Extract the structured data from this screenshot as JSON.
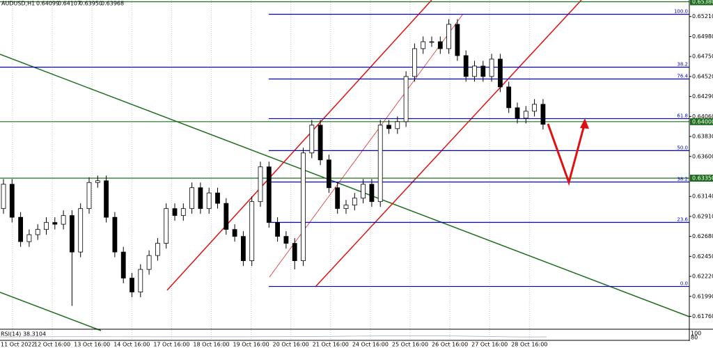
{
  "chart_data": {
    "type": "candlestick",
    "symbol": "AUDUSD,H1",
    "quote": [
      "0.64099",
      "0.64107",
      "0.63950",
      "0.63968"
    ],
    "ylim": [
      0.6162,
      0.654
    ],
    "yticks": [
      {
        "value": 0.6521,
        "label": "0.65210"
      },
      {
        "value": 0.6498,
        "label": "0.64980"
      },
      {
        "value": 0.6475,
        "label": "0.64750"
      },
      {
        "value": 0.6452,
        "label": "0.64520"
      },
      {
        "value": 0.6429,
        "label": "0.64290"
      },
      {
        "value": 0.6406,
        "label": "0.64060"
      },
      {
        "value": 0.6383,
        "label": "0.63830"
      },
      {
        "value": 0.636,
        "label": "0.63600"
      },
      {
        "value": 0.6314,
        "label": "0.63140"
      },
      {
        "value": 0.6291,
        "label": "0.62910"
      },
      {
        "value": 0.6268,
        "label": "0.62680"
      },
      {
        "value": 0.6245,
        "label": "0.62450"
      },
      {
        "value": 0.6222,
        "label": "0.62220"
      },
      {
        "value": 0.6199,
        "label": "0.61990"
      },
      {
        "value": 0.6176,
        "label": "0.61760"
      }
    ],
    "levels": [
      {
        "value": 0.6538,
        "label": "0.65380"
      },
      {
        "value": 0.64,
        "label": "0.64000"
      },
      {
        "value": 0.6335,
        "label": "0.63350"
      }
    ],
    "level_color": "#1e6e1e",
    "fib_color": "#0000c8",
    "fib_levels": [
      {
        "value": 0.65236,
        "label": "100.0"
      },
      {
        "value": 0.64491,
        "label": "76.4"
      },
      {
        "value": 0.64035,
        "label": "61.8"
      },
      {
        "value": 0.63667,
        "label": "50.0"
      },
      {
        "value": 0.63306,
        "label": "38.2"
      },
      {
        "value": 0.62841,
        "label": "23.6"
      },
      {
        "value": 0.62104,
        "label": "0.0"
      }
    ],
    "extra_level": {
      "value": 0.64627,
      "label": "38.2"
    },
    "xticks": [
      "11 Oct 2022",
      "12 Oct 16:00",
      "13 Oct 16:00",
      "14 Oct 16:00",
      "17 Oct 16:00",
      "18 Oct 16:00",
      "19 Oct 16:00",
      "20 Oct 16:00",
      "21 Oct 16:00",
      "24 Oct 16:00",
      "25 Oct 16:00",
      "26 Oct 16:00",
      "27 Oct 16:00",
      "28 Oct 16:00"
    ],
    "indicator": "RSI(14) 38.3104",
    "indicator_scale": [
      "100",
      "80"
    ],
    "open": [
      0.63,
      0.6328,
      0.629,
      0.6262,
      0.627,
      0.6276,
      0.6284,
      0.6282,
      0.6292,
      0.625,
      0.63,
      0.633,
      0.6332,
      0.629,
      0.625,
      0.622,
      0.6204,
      0.623,
      0.6246,
      0.626,
      0.63,
      0.6292,
      0.63,
      0.6324,
      0.63,
      0.6318,
      0.6306,
      0.6276,
      0.6268,
      0.624,
      0.6308,
      0.6348,
      0.6284,
      0.6268,
      0.626,
      0.624,
      0.6364,
      0.6396,
      0.6356,
      0.6324,
      0.63,
      0.6304,
      0.6312,
      0.6328,
      0.6308,
      0.6396,
      0.6392,
      0.64,
      0.6452,
      0.6484,
      0.6492,
      0.6492,
      0.6484,
      0.6512,
      0.6476,
      0.6452,
      0.6464,
      0.6452,
      0.6472,
      0.644,
      0.6416,
      0.6404,
      0.6412,
      0.642
    ],
    "high": [
      0.6334,
      0.6334,
      0.6296,
      0.6276,
      0.6282,
      0.629,
      0.629,
      0.6298,
      0.6298,
      0.6306,
      0.6336,
      0.6338,
      0.6338,
      0.6296,
      0.6256,
      0.6226,
      0.6236,
      0.6252,
      0.6266,
      0.6306,
      0.6306,
      0.6306,
      0.633,
      0.633,
      0.6324,
      0.6324,
      0.6312,
      0.6282,
      0.6274,
      0.6314,
      0.6354,
      0.6354,
      0.629,
      0.6274,
      0.6266,
      0.637,
      0.6402,
      0.6402,
      0.6362,
      0.633,
      0.631,
      0.6318,
      0.6334,
      0.6334,
      0.6402,
      0.6402,
      0.6406,
      0.6458,
      0.649,
      0.6498,
      0.6498,
      0.6498,
      0.6518,
      0.6518,
      0.6482,
      0.647,
      0.647,
      0.6478,
      0.6478,
      0.6446,
      0.6422,
      0.6418,
      0.6426,
      0.6426
    ],
    "low": [
      0.6294,
      0.6284,
      0.6256,
      0.6256,
      0.6264,
      0.627,
      0.6276,
      0.6276,
      0.6188,
      0.6244,
      0.6294,
      0.6324,
      0.6284,
      0.6244,
      0.6214,
      0.6198,
      0.6198,
      0.6224,
      0.624,
      0.6254,
      0.6286,
      0.6286,
      0.6294,
      0.6294,
      0.6294,
      0.63,
      0.627,
      0.6262,
      0.6234,
      0.6234,
      0.6302,
      0.6278,
      0.6262,
      0.6254,
      0.623,
      0.6234,
      0.6358,
      0.635,
      0.6318,
      0.6294,
      0.6294,
      0.6298,
      0.6306,
      0.6302,
      0.6302,
      0.6386,
      0.6386,
      0.6394,
      0.6446,
      0.6478,
      0.6486,
      0.6478,
      0.6478,
      0.647,
      0.6446,
      0.6446,
      0.6446,
      0.6446,
      0.6434,
      0.641,
      0.6398,
      0.6398,
      0.6406,
      0.6391
    ],
    "close": [
      0.6328,
      0.629,
      0.6262,
      0.627,
      0.6276,
      0.6284,
      0.6282,
      0.6292,
      0.625,
      0.63,
      0.633,
      0.6332,
      0.629,
      0.625,
      0.622,
      0.6204,
      0.623,
      0.6246,
      0.626,
      0.63,
      0.6292,
      0.63,
      0.6324,
      0.63,
      0.6318,
      0.6306,
      0.6276,
      0.6268,
      0.624,
      0.6308,
      0.6348,
      0.6284,
      0.6268,
      0.626,
      0.624,
      0.6364,
      0.6396,
      0.6356,
      0.6324,
      0.63,
      0.6304,
      0.6312,
      0.6328,
      0.6308,
      0.6396,
      0.6392,
      0.64,
      0.6452,
      0.6484,
      0.6492,
      0.6492,
      0.6484,
      0.6512,
      0.6476,
      0.6452,
      0.6464,
      0.6452,
      0.6472,
      0.644,
      0.6416,
      0.6404,
      0.6412,
      0.642,
      0.6397
    ]
  }
}
